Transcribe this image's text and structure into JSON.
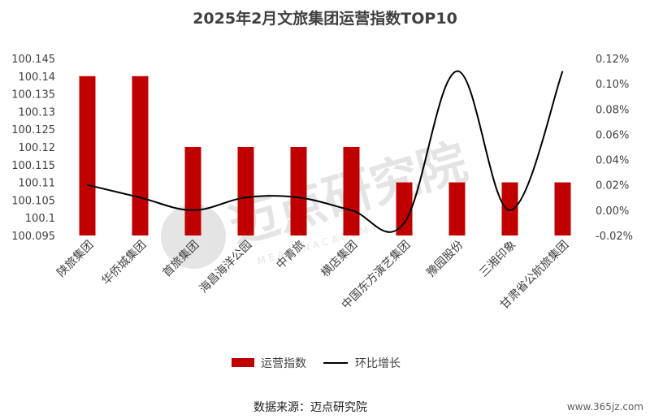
{
  "chart_data": {
    "type": "bar",
    "title": "2025年2月文旅集团运营指数TOP10",
    "categories": [
      "陕旅集团",
      "华侨城集团",
      "首旅集团",
      "海昌海洋公园",
      "中青旅",
      "横店集团",
      "中国东方演艺集团",
      "豫园股份",
      "三湘印象",
      "甘肃省公航旅集团"
    ],
    "series": [
      {
        "name": "运营指数",
        "type": "bar",
        "axis": "left",
        "color": "#C00000",
        "values": [
          100.14,
          100.14,
          100.12,
          100.12,
          100.12,
          100.12,
          100.11,
          100.11,
          100.11,
          100.11
        ]
      },
      {
        "name": "环比增长",
        "type": "line",
        "axis": "right",
        "color": "#000000",
        "unit": "%",
        "values": [
          0.02,
          0.01,
          0.0,
          0.01,
          0.01,
          0.0,
          -0.01,
          0.11,
          0.0,
          0.11
        ]
      }
    ],
    "y_left": {
      "min": 100.095,
      "max": 100.145,
      "ticks": [
        "100.095",
        "100.1",
        "100.105",
        "100.11",
        "100.115",
        "100.12",
        "100.125",
        "100.13",
        "100.135",
        "100.14",
        "100.145"
      ]
    },
    "y_right": {
      "min": -0.02,
      "max": 0.12,
      "ticks": [
        "-0.02%",
        "0.00%",
        "0.02%",
        "0.04%",
        "0.06%",
        "0.08%",
        "0.10%",
        "0.12%"
      ]
    },
    "grid": false,
    "legend_position": "bottom"
  },
  "footer": {
    "source": "数据来源：迈点研究院",
    "site": "www.365jz.com"
  },
  "watermark": {
    "text": "迈点研究院",
    "subtext": "M E A D I N   A C A D E M Y"
  }
}
